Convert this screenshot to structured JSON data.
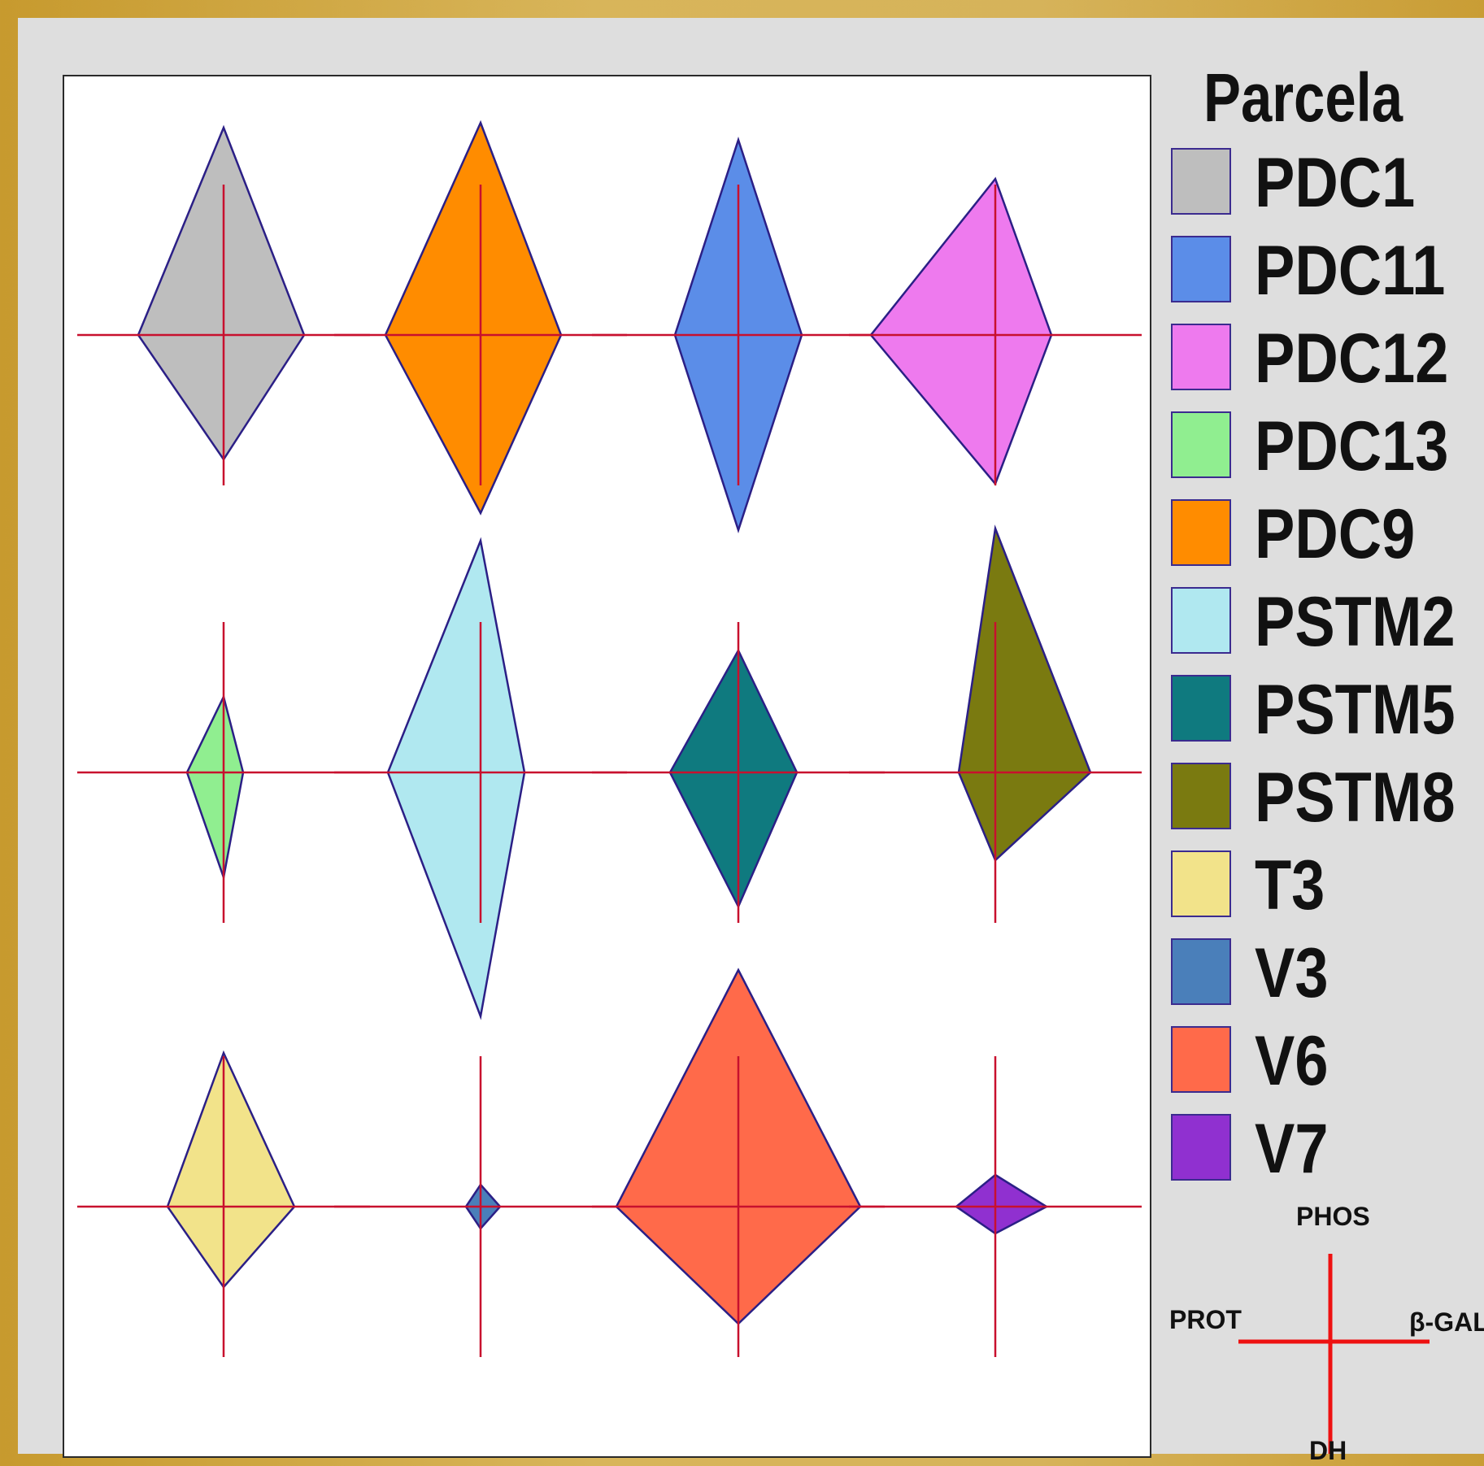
{
  "chart_data": {
    "type": "star",
    "legend_title": "Parcela",
    "variables": [
      "PHOS",
      "β-GAL",
      "DH",
      "PROT"
    ],
    "axis_color": "#c8102e",
    "series": [
      {
        "name": "PDC1",
        "color": "#bebebe",
        "values": [
          0.85,
          0.33,
          0.51,
          0.35
        ]
      },
      {
        "name": "PDC9",
        "color": "#ff8c00",
        "values": [
          0.87,
          0.33,
          0.73,
          0.39
        ]
      },
      {
        "name": "PDC11",
        "color": "#5b8de8",
        "values": [
          0.8,
          0.26,
          0.8,
          0.26
        ]
      },
      {
        "name": "PDC12",
        "color": "#ee7aee",
        "values": [
          0.64,
          0.23,
          0.61,
          0.51
        ]
      },
      {
        "name": "PDC13",
        "color": "#90ee90",
        "values": [
          0.31,
          0.08,
          0.43,
          0.15
        ]
      },
      {
        "name": "PSTM2",
        "color": "#b0e8f0",
        "values": [
          0.95,
          0.18,
          1.0,
          0.38
        ]
      },
      {
        "name": "PSTM5",
        "color": "#0f7a7f",
        "values": [
          0.5,
          0.24,
          0.55,
          0.28
        ]
      },
      {
        "name": "PSTM8",
        "color": "#7a7a10",
        "values": [
          1.0,
          0.39,
          0.36,
          0.15
        ]
      },
      {
        "name": "T3",
        "color": "#f2e38a",
        "values": [
          0.63,
          0.29,
          0.33,
          0.23
        ]
      },
      {
        "name": "V3",
        "color": "#4a7fba",
        "values": [
          0.09,
          0.08,
          0.09,
          0.06
        ]
      },
      {
        "name": "V6",
        "color": "#ff6a4a",
        "values": [
          0.97,
          0.5,
          0.48,
          0.5
        ]
      },
      {
        "name": "V7",
        "color": "#9030d0",
        "values": [
          0.13,
          0.21,
          0.11,
          0.16
        ]
      }
    ],
    "grid_order": [
      "PDC1",
      "PDC9",
      "PDC11",
      "PDC12",
      "PDC13",
      "PSTM2",
      "PSTM5",
      "PSTM8",
      "T3",
      "V3",
      "V6",
      "V7"
    ],
    "legend_order": [
      "PDC1",
      "PDC11",
      "PDC12",
      "PDC13",
      "PDC9",
      "PSTM2",
      "PSTM5",
      "PSTM8",
      "T3",
      "V3",
      "V6",
      "V7"
    ],
    "legend_position": "right",
    "key": {
      "top": "PHOS",
      "right": "β-GAL",
      "bottom": "DH",
      "left": "PROT"
    }
  }
}
